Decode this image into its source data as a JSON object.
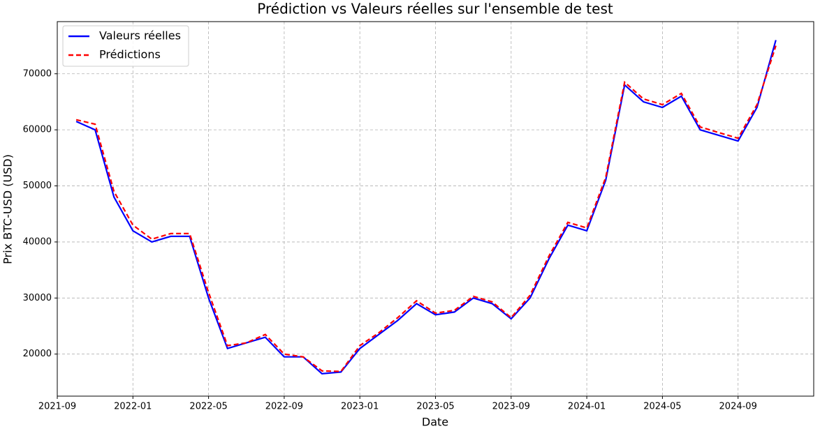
{
  "chart_data": {
    "type": "line",
    "title": "Prédiction vs Valeurs réelles sur l'ensemble de test",
    "x_label": "Date",
    "y_label": "Prix BTC-USD (USD)",
    "x": [
      "2021-10",
      "2021-11",
      "2021-12",
      "2022-01",
      "2022-02",
      "2022-03",
      "2022-04",
      "2022-05",
      "2022-06",
      "2022-07",
      "2022-08",
      "2022-09",
      "2022-10",
      "2022-11",
      "2022-12",
      "2023-01",
      "2023-02",
      "2023-03",
      "2023-04",
      "2023-05",
      "2023-06",
      "2023-07",
      "2023-08",
      "2023-09",
      "2023-10",
      "2023-11",
      "2023-12",
      "2024-01",
      "2024-02",
      "2024-03",
      "2024-04",
      "2024-05",
      "2024-06",
      "2024-07",
      "2024-08",
      "2024-09",
      "2024-10",
      "2024-11"
    ],
    "series": [
      {
        "name": "Valeurs réelles",
        "color": "#0000ff",
        "linestyle": "solid",
        "values": [
          61500,
          60000,
          48000,
          42000,
          40000,
          41000,
          41000,
          30000,
          21000,
          22000,
          23000,
          19500,
          19500,
          16500,
          16800,
          21000,
          23500,
          26000,
          29000,
          27000,
          27500,
          30000,
          29000,
          26300,
          30000,
          37000,
          43000,
          42000,
          51000,
          68000,
          65000,
          64000,
          66000,
          60000,
          59000,
          58000,
          64000,
          76000
        ]
      },
      {
        "name": "Prédictions",
        "color": "#ff0000",
        "linestyle": "dashed",
        "values": [
          61800,
          61000,
          49000,
          43000,
          40500,
          41500,
          41500,
          31000,
          21500,
          22000,
          23500,
          20000,
          19500,
          17000,
          16900,
          21500,
          23800,
          26500,
          29500,
          27300,
          27800,
          30300,
          29300,
          26500,
          30500,
          37500,
          43500,
          42500,
          51500,
          68500,
          65500,
          64500,
          66500,
          60500,
          59500,
          58500,
          64500,
          75000
        ]
      }
    ],
    "xlim": [
      "2021-09",
      "2025-01"
    ],
    "xticks": [
      "2021-09",
      "2022-01",
      "2022-05",
      "2022-09",
      "2023-01",
      "2023-05",
      "2023-09",
      "2024-01",
      "2024-05",
      "2024-09"
    ],
    "ylim": [
      12500,
      79300
    ],
    "yticks": [
      20000,
      30000,
      40000,
      50000,
      60000,
      70000
    ],
    "grid": true,
    "legend": "upper-left"
  }
}
